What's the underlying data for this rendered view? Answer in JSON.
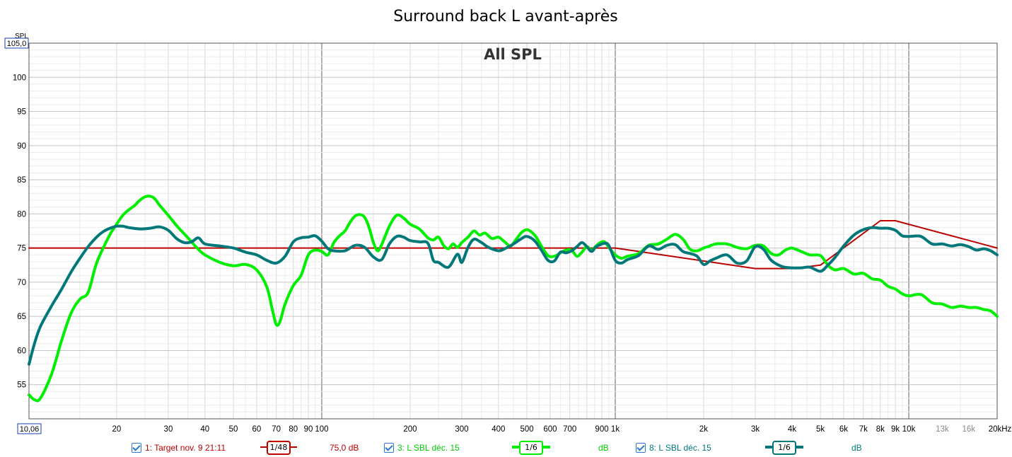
{
  "title": "Surround back L avant-après",
  "inner_title": "All SPL",
  "y_unit_label": "SPL",
  "y_top_value": "105,0",
  "x_left_value": "10,06",
  "colors": {
    "target": "#bb0000",
    "after": "#00ee00",
    "before": "#00787a",
    "grid": "#d8d8d8",
    "grid_major": "#606060",
    "checkbox": "#2a78d0"
  },
  "legend": [
    {
      "label": "1: Target nov. 9 21:11",
      "smoothing": "1/48",
      "value": "75,0 dB",
      "color": "#bb0000"
    },
    {
      "label": "3: L SBL déc. 15",
      "smoothing": "1/6",
      "value": "dB",
      "color": "#00ee00"
    },
    {
      "label": "8: L SBL déc. 15",
      "smoothing": "1/6",
      "value": "dB",
      "color": "#00787a"
    }
  ],
  "chart_data": {
    "type": "line",
    "title": "Surround back L avant-après",
    "xlabel": "",
    "ylabel": "SPL",
    "x_scale": "log",
    "xlim": [
      10.06,
      20000
    ],
    "ylim": [
      50,
      105
    ],
    "grid": true,
    "y_ticks": [
      55,
      60,
      65,
      70,
      75,
      80,
      85,
      90,
      95,
      100
    ],
    "x_ticks": [
      {
        "v": 20,
        "label": "20"
      },
      {
        "v": 30,
        "label": "30"
      },
      {
        "v": 40,
        "label": "40"
      },
      {
        "v": 50,
        "label": "50"
      },
      {
        "v": 60,
        "label": "60"
      },
      {
        "v": 70,
        "label": "70"
      },
      {
        "v": 80,
        "label": "80"
      },
      {
        "v": 90,
        "label": "90"
      },
      {
        "v": 100,
        "label": "100"
      },
      {
        "v": 200,
        "label": "200"
      },
      {
        "v": 300,
        "label": "300"
      },
      {
        "v": 400,
        "label": "400"
      },
      {
        "v": 500,
        "label": "500"
      },
      {
        "v": 600,
        "label": "600"
      },
      {
        "v": 700,
        "label": "700"
      },
      {
        "v": 900,
        "label": "900"
      },
      {
        "v": 1000,
        "label": "1k"
      },
      {
        "v": 2000,
        "label": "2k"
      },
      {
        "v": 3000,
        "label": "3k"
      },
      {
        "v": 4000,
        "label": "4k"
      },
      {
        "v": 5000,
        "label": "5k"
      },
      {
        "v": 6000,
        "label": "6k"
      },
      {
        "v": 7000,
        "label": "7k"
      },
      {
        "v": 8000,
        "label": "8k"
      },
      {
        "v": 9000,
        "label": "9k"
      },
      {
        "v": 10000,
        "label": "10k"
      },
      {
        "v": 13000,
        "label": "13k",
        "minor": true
      },
      {
        "v": 16000,
        "label": "16k",
        "minor": true
      },
      {
        "v": 20000,
        "label": "20kHz"
      }
    ],
    "series": [
      {
        "name": "1: Target nov. 9 21:11",
        "color": "#bb0000",
        "width": 2,
        "points": [
          [
            10.06,
            75
          ],
          [
            1000,
            75
          ],
          [
            3000,
            72
          ],
          [
            4000,
            72
          ],
          [
            5000,
            72.5
          ],
          [
            8000,
            79
          ],
          [
            9000,
            79
          ],
          [
            20000,
            75
          ]
        ]
      },
      {
        "name": "3: L SBL déc. 15",
        "color": "#00ee00",
        "width": 4,
        "points": [
          [
            10.06,
            53.5
          ],
          [
            10.5,
            52.8
          ],
          [
            11,
            53
          ],
          [
            12,
            56.5
          ],
          [
            13,
            61.5
          ],
          [
            14,
            65.5
          ],
          [
            15,
            67.5
          ],
          [
            16,
            68.5
          ],
          [
            17,
            72.5
          ],
          [
            18,
            75
          ],
          [
            19,
            77
          ],
          [
            20,
            78.5
          ],
          [
            21,
            79.8
          ],
          [
            22,
            80.6
          ],
          [
            23,
            81.2
          ],
          [
            24,
            82
          ],
          [
            25,
            82.5
          ],
          [
            26,
            82.6
          ],
          [
            27,
            82.2
          ],
          [
            28,
            81.3
          ],
          [
            30,
            79.8
          ],
          [
            32,
            78.3
          ],
          [
            35,
            76.5
          ],
          [
            38,
            74.8
          ],
          [
            40,
            74
          ],
          [
            45,
            72.9
          ],
          [
            50,
            72.4
          ],
          [
            55,
            72.6
          ],
          [
            60,
            71.8
          ],
          [
            65,
            69.3
          ],
          [
            68,
            65.8
          ],
          [
            70,
            63.8
          ],
          [
            72,
            64.2
          ],
          [
            75,
            66.8
          ],
          [
            80,
            69.5
          ],
          [
            85,
            71
          ],
          [
            90,
            74
          ],
          [
            95,
            74.7
          ],
          [
            100,
            74.5
          ],
          [
            105,
            74
          ],
          [
            110,
            75.8
          ],
          [
            115,
            76.8
          ],
          [
            120,
            77.5
          ],
          [
            125,
            78.8
          ],
          [
            130,
            79.7
          ],
          [
            135,
            79.9
          ],
          [
            140,
            79.5
          ],
          [
            145,
            78
          ],
          [
            150,
            75.8
          ],
          [
            155,
            74.6
          ],
          [
            160,
            75.5
          ],
          [
            170,
            78.2
          ],
          [
            180,
            79.8
          ],
          [
            190,
            79.4
          ],
          [
            200,
            78.5
          ],
          [
            215,
            77.8
          ],
          [
            230,
            76.5
          ],
          [
            240,
            76.2
          ],
          [
            250,
            76.6
          ],
          [
            260,
            75.4
          ],
          [
            270,
            74.9
          ],
          [
            280,
            75.6
          ],
          [
            290,
            75.1
          ],
          [
            300,
            75.8
          ],
          [
            315,
            76.6
          ],
          [
            330,
            77.5
          ],
          [
            345,
            76.9
          ],
          [
            360,
            77.2
          ],
          [
            380,
            76.4
          ],
          [
            400,
            76.6
          ],
          [
            420,
            75.9
          ],
          [
            440,
            75.3
          ],
          [
            460,
            76.3
          ],
          [
            480,
            77.3
          ],
          [
            500,
            77.7
          ],
          [
            520,
            77.3
          ],
          [
            540,
            76.5
          ],
          [
            560,
            75.3
          ],
          [
            590,
            73.9
          ],
          [
            620,
            73.8
          ],
          [
            650,
            74.3
          ],
          [
            680,
            74.7
          ],
          [
            710,
            74.7
          ],
          [
            740,
            73.8
          ],
          [
            770,
            74.4
          ],
          [
            800,
            75.2
          ],
          [
            830,
            74.7
          ],
          [
            860,
            75.3
          ],
          [
            890,
            75.8
          ],
          [
            920,
            75.9
          ],
          [
            950,
            75.1
          ],
          [
            1000,
            74
          ],
          [
            1050,
            73.5
          ],
          [
            1100,
            73.8
          ],
          [
            1200,
            74.2
          ],
          [
            1300,
            75.4
          ],
          [
            1400,
            75.6
          ],
          [
            1500,
            76.3
          ],
          [
            1600,
            77
          ],
          [
            1700,
            76.3
          ],
          [
            1800,
            74.8
          ],
          [
            1900,
            74.6
          ],
          [
            2000,
            75
          ],
          [
            2100,
            75.3
          ],
          [
            2200,
            75.6
          ],
          [
            2400,
            75.6
          ],
          [
            2600,
            75.1
          ],
          [
            2800,
            74.9
          ],
          [
            3000,
            75.4
          ],
          [
            3200,
            75.3
          ],
          [
            3400,
            74.2
          ],
          [
            3600,
            74
          ],
          [
            3800,
            74.7
          ],
          [
            4000,
            75
          ],
          [
            4300,
            74.5
          ],
          [
            4600,
            74
          ],
          [
            5000,
            73.9
          ],
          [
            5300,
            72.5
          ],
          [
            5600,
            71.8
          ],
          [
            6000,
            72
          ],
          [
            6500,
            71.2
          ],
          [
            7000,
            71.3
          ],
          [
            7500,
            70.5
          ],
          [
            8000,
            70.3
          ],
          [
            8500,
            69.4
          ],
          [
            9000,
            69
          ],
          [
            9500,
            68.3
          ],
          [
            10000,
            68
          ],
          [
            11000,
            68.2
          ],
          [
            12000,
            67
          ],
          [
            13000,
            66.8
          ],
          [
            14000,
            66.3
          ],
          [
            15000,
            66.5
          ],
          [
            16000,
            66.3
          ],
          [
            17000,
            66.3
          ],
          [
            18000,
            66
          ],
          [
            19000,
            65.8
          ],
          [
            20000,
            65
          ]
        ]
      },
      {
        "name": "8: L SBL déc. 15",
        "color": "#00787a",
        "width": 4,
        "points": [
          [
            10.06,
            58
          ],
          [
            10.5,
            61
          ],
          [
            11,
            63.5
          ],
          [
            12,
            66.5
          ],
          [
            13,
            69
          ],
          [
            14,
            71.5
          ],
          [
            15,
            73.5
          ],
          [
            16,
            75.2
          ],
          [
            17,
            76.5
          ],
          [
            18,
            77.4
          ],
          [
            19,
            77.9
          ],
          [
            20,
            78.2
          ],
          [
            21,
            78.2
          ],
          [
            22,
            78
          ],
          [
            24,
            77.8
          ],
          [
            26,
            77.9
          ],
          [
            28,
            78.1
          ],
          [
            30,
            77.6
          ],
          [
            32,
            76.4
          ],
          [
            34,
            75.8
          ],
          [
            36,
            75.9
          ],
          [
            38,
            76.5
          ],
          [
            40,
            75.6
          ],
          [
            45,
            75.3
          ],
          [
            50,
            75
          ],
          [
            55,
            74.4
          ],
          [
            60,
            74
          ],
          [
            65,
            73.2
          ],
          [
            70,
            72.8
          ],
          [
            75,
            73.8
          ],
          [
            80,
            75.9
          ],
          [
            85,
            76.5
          ],
          [
            90,
            76.6
          ],
          [
            95,
            76.8
          ],
          [
            100,
            76
          ],
          [
            105,
            74.9
          ],
          [
            110,
            74.6
          ],
          [
            120,
            74.6
          ],
          [
            130,
            75.4
          ],
          [
            140,
            75.1
          ],
          [
            150,
            73.7
          ],
          [
            160,
            73.3
          ],
          [
            170,
            75.6
          ],
          [
            180,
            76.7
          ],
          [
            190,
            76.6
          ],
          [
            200,
            76.1
          ],
          [
            215,
            75.9
          ],
          [
            230,
            75.7
          ],
          [
            240,
            73.2
          ],
          [
            250,
            72.9
          ],
          [
            270,
            72.2
          ],
          [
            290,
            74.1
          ],
          [
            300,
            72.9
          ],
          [
            315,
            75.1
          ],
          [
            330,
            76.3
          ],
          [
            350,
            75.8
          ],
          [
            370,
            75.1
          ],
          [
            400,
            74.6
          ],
          [
            420,
            74.9
          ],
          [
            450,
            75.6
          ],
          [
            480,
            76.4
          ],
          [
            500,
            76.7
          ],
          [
            530,
            76.1
          ],
          [
            560,
            74.7
          ],
          [
            590,
            73.2
          ],
          [
            620,
            73.1
          ],
          [
            650,
            74.4
          ],
          [
            680,
            74.3
          ],
          [
            710,
            74.6
          ],
          [
            740,
            75.2
          ],
          [
            770,
            75.8
          ],
          [
            800,
            75.2
          ],
          [
            830,
            74.5
          ],
          [
            860,
            75.2
          ],
          [
            890,
            75.5
          ],
          [
            920,
            75.7
          ],
          [
            950,
            75.4
          ],
          [
            1000,
            73.2
          ],
          [
            1050,
            72.8
          ],
          [
            1100,
            73.3
          ],
          [
            1200,
            73.9
          ],
          [
            1300,
            75.3
          ],
          [
            1400,
            74.8
          ],
          [
            1500,
            75.4
          ],
          [
            1600,
            75.5
          ],
          [
            1700,
            74.5
          ],
          [
            1800,
            74.2
          ],
          [
            1900,
            73.8
          ],
          [
            2000,
            72.6
          ],
          [
            2100,
            73.1
          ],
          [
            2200,
            73.5
          ],
          [
            2400,
            74
          ],
          [
            2600,
            72.8
          ],
          [
            2800,
            73.1
          ],
          [
            3000,
            75.2
          ],
          [
            3200,
            74.8
          ],
          [
            3400,
            73.2
          ],
          [
            3700,
            72.3
          ],
          [
            4000,
            72.1
          ],
          [
            4300,
            72.1
          ],
          [
            4600,
            72.2
          ],
          [
            5000,
            71.6
          ],
          [
            5300,
            72.5
          ],
          [
            5600,
            73.6
          ],
          [
            6000,
            75.3
          ],
          [
            6500,
            76.9
          ],
          [
            7000,
            77.7
          ],
          [
            7500,
            78
          ],
          [
            8000,
            77.9
          ],
          [
            8500,
            77.9
          ],
          [
            9000,
            77.6
          ],
          [
            9500,
            76.8
          ],
          [
            10000,
            76.7
          ],
          [
            11000,
            76.7
          ],
          [
            12000,
            75.6
          ],
          [
            13000,
            75.6
          ],
          [
            14000,
            75.3
          ],
          [
            15000,
            75.5
          ],
          [
            16000,
            75.2
          ],
          [
            17000,
            74.7
          ],
          [
            18000,
            74.9
          ],
          [
            19000,
            74.6
          ],
          [
            20000,
            74
          ]
        ]
      }
    ]
  }
}
